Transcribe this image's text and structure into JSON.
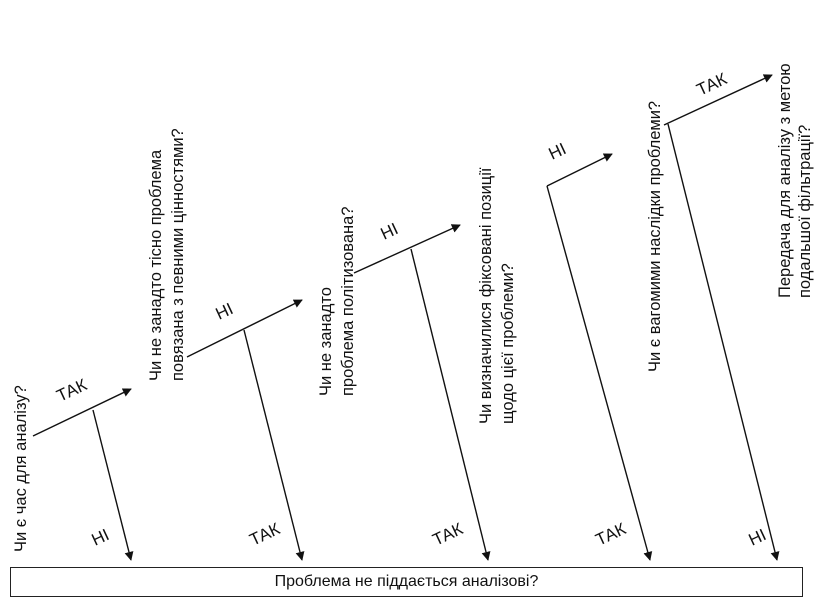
{
  "questions": [
    [
      "Чи є час для аналізу?"
    ],
    [
      "Чи не занадто тісно проблема",
      "повязана з певними цінностями?"
    ],
    [
      "Чи не занадто",
      "проблема політизована?"
    ],
    [
      "Чи визначилися фіксовані позиції",
      "щодо цієї проблеми?"
    ],
    [
      "Чи є вагомими наслідки проблеми?"
    ],
    [
      "Передача для аналізу з метою",
      "подальшої фільтрації?"
    ]
  ],
  "step_labels": [
    "ТАК",
    "НІ",
    "НІ",
    "НІ",
    "ТАК"
  ],
  "exit_labels": [
    "НІ",
    "ТАК",
    "ТАК",
    "ТАК",
    "НІ"
  ],
  "footer": {
    "text": "Проблема не піддається аналізові?"
  }
}
